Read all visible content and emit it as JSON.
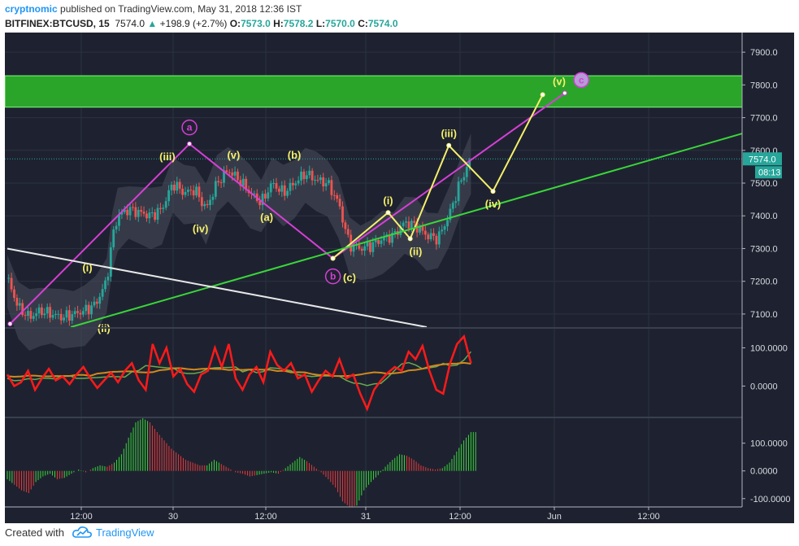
{
  "header": {
    "author": "cryptnomic",
    "published": "published on TradingView.com, May 31, 2018 12:36 IST",
    "symbol": "BITFINEX:BTCUSD, 15",
    "last": "7574.0",
    "change": "+198.9 (+2.7%)",
    "o_label": "O:",
    "o_val": "7573.0",
    "h_label": "H:",
    "h_val": "7578.2",
    "l_label": "L:",
    "l_val": "7570.0",
    "c_label": "C:",
    "c_val": "7574.0"
  },
  "footer": {
    "created": "Created with",
    "brand": "TradingView"
  },
  "colors": {
    "bg": "#1e2230",
    "up": "#26a69a",
    "down": "#ef5350",
    "zone": "#2aa52a",
    "magenta": "#d63fd6",
    "yellow": "#f5f06a",
    "green_line": "#3ad63a",
    "white_line": "#e8e8e8",
    "osc": "#ff1a1a",
    "osc_signal": "#6aa84f",
    "osc_slow": "#d2891e"
  },
  "chart_data": {
    "type": "candlestick",
    "symbol": "BITFINEX:BTCUSD",
    "timeframe": "15",
    "price_axis": {
      "range": [
        7060,
        7960
      ],
      "ticks": [
        "7900.0",
        "7800.0",
        "7700.0",
        "7600.0",
        "7500.0",
        "7400.0",
        "7300.0",
        "7200.0",
        "7100.0"
      ],
      "last_price": "7574.0",
      "countdown": "08:13"
    },
    "time_axis": {
      "ticks": [
        "12:00",
        "30",
        "12:00",
        "31",
        "12:00",
        "Jun",
        "12:00"
      ]
    },
    "target_zone": {
      "low": 7732,
      "high": 7828
    },
    "price_path": [
      {
        "t": 0,
        "p": 7210
      },
      {
        "t": 2,
        "p": 7120
      },
      {
        "t": 4,
        "p": 7090
      },
      {
        "t": 6,
        "p": 7110
      },
      {
        "t": 8,
        "p": 7100
      },
      {
        "t": 10,
        "p": 7090
      },
      {
        "t": 12,
        "p": 7100
      },
      {
        "t": 14,
        "p": 7110
      },
      {
        "t": 16,
        "p": 7130
      },
      {
        "t": 18,
        "p": 7200
      },
      {
        "t": 19,
        "p": 7330
      },
      {
        "t": 20,
        "p": 7400
      },
      {
        "t": 22,
        "p": 7420
      },
      {
        "t": 24,
        "p": 7410
      },
      {
        "t": 26,
        "p": 7400
      },
      {
        "t": 28,
        "p": 7420
      },
      {
        "t": 30,
        "p": 7500
      },
      {
        "t": 32,
        "p": 7470
      },
      {
        "t": 34,
        "p": 7480
      },
      {
        "t": 36,
        "p": 7420
      },
      {
        "t": 38,
        "p": 7500
      },
      {
        "t": 40,
        "p": 7540
      },
      {
        "t": 42,
        "p": 7510
      },
      {
        "t": 44,
        "p": 7470
      },
      {
        "t": 46,
        "p": 7440
      },
      {
        "t": 48,
        "p": 7500
      },
      {
        "t": 50,
        "p": 7470
      },
      {
        "t": 52,
        "p": 7500
      },
      {
        "t": 54,
        "p": 7530
      },
      {
        "t": 56,
        "p": 7510
      },
      {
        "t": 58,
        "p": 7500
      },
      {
        "t": 60,
        "p": 7440
      },
      {
        "t": 62,
        "p": 7310
      },
      {
        "t": 64,
        "p": 7300
      },
      {
        "t": 66,
        "p": 7310
      },
      {
        "t": 68,
        "p": 7330
      },
      {
        "t": 70,
        "p": 7340
      },
      {
        "t": 72,
        "p": 7380
      },
      {
        "t": 74,
        "p": 7370
      },
      {
        "t": 76,
        "p": 7340
      },
      {
        "t": 78,
        "p": 7330
      },
      {
        "t": 80,
        "p": 7400
      },
      {
        "t": 82,
        "p": 7500
      },
      {
        "t": 84,
        "p": 7574
      }
    ],
    "wave_lines": [
      {
        "name": "magenta-abc",
        "color": "magenta",
        "points": [
          [
            0.5,
            7070
          ],
          [
            33,
            7620
          ],
          [
            59,
            7270
          ],
          [
            101,
            7775
          ]
        ]
      },
      {
        "name": "yellow-impulse",
        "color": "yellow",
        "points": [
          [
            59,
            7270
          ],
          [
            69,
            7410
          ],
          [
            73,
            7330
          ],
          [
            80,
            7615
          ],
          [
            88,
            7475
          ],
          [
            97,
            7770
          ]
        ]
      },
      {
        "name": "green-trendline",
        "color": "green_line",
        "points": [
          [
            11.5,
            7060
          ],
          [
            137,
            7670
          ]
        ]
      },
      {
        "name": "white-trendline",
        "color": "white_line",
        "points": [
          [
            0,
            7300
          ],
          [
            76,
            7060
          ]
        ]
      }
    ],
    "wave_labels": [
      {
        "text": "a",
        "t": 33,
        "p": 7670,
        "color": "magenta",
        "circle": true
      },
      {
        "text": "b",
        "t": 59,
        "p": 7215,
        "color": "magenta",
        "circle": true
      },
      {
        "text": "c",
        "t": 104,
        "p": 7815,
        "color": "magenta",
        "circle": true
      },
      {
        "text": "(i)",
        "t": 14.5,
        "p": 7240,
        "color": "yellow"
      },
      {
        "text": "(iii)",
        "t": 29,
        "p": 7580,
        "color": "yellow"
      },
      {
        "text": "(iv)",
        "t": 35,
        "p": 7360,
        "color": "yellow"
      },
      {
        "text": "(v)",
        "t": 41,
        "p": 7585,
        "color": "yellow"
      },
      {
        "text": "(a)",
        "t": 47,
        "p": 7395,
        "color": "yellow"
      },
      {
        "text": "(b)",
        "t": 52,
        "p": 7585,
        "color": "yellow"
      },
      {
        "text": "(c)",
        "t": 62,
        "p": 7210,
        "color": "yellow"
      },
      {
        "text": "(i)",
        "t": 69,
        "p": 7445,
        "color": "yellow"
      },
      {
        "text": "(ii)",
        "t": 74,
        "p": 7290,
        "color": "yellow"
      },
      {
        "text": "(iii)",
        "t": 80,
        "p": 7650,
        "color": "yellow"
      },
      {
        "text": "(iv)",
        "t": 88,
        "p": 7435,
        "color": "yellow"
      },
      {
        "text": "(v)",
        "t": 100,
        "p": 7810,
        "color": "yellow"
      },
      {
        "text": "(ii)",
        "t": 17.5,
        "p": 7055,
        "color": "yellow"
      }
    ],
    "oscillator": {
      "axis_ticks": [
        "100.0000",
        "0.0000"
      ],
      "range": [
        -80,
        150
      ],
      "values": [
        30,
        0,
        10,
        40,
        -10,
        20,
        45,
        15,
        25,
        5,
        30,
        50,
        20,
        -5,
        15,
        35,
        10,
        40,
        60,
        15,
        -10,
        110,
        60,
        100,
        25,
        45,
        5,
        -15,
        30,
        40,
        100,
        50,
        110,
        20,
        -10,
        30,
        50,
        10,
        90,
        55,
        40,
        60,
        20,
        30,
        -15,
        15,
        40,
        25,
        70,
        20,
        30,
        -20,
        -60,
        -10,
        15,
        35,
        50,
        40,
        90,
        70,
        105,
        40,
        -10,
        -20,
        60,
        110,
        130,
        60
      ]
    },
    "histogram": {
      "axis_ticks": [
        "100.0000",
        "0.0000",
        "-100.0000"
      ],
      "range": [
        -130,
        190
      ],
      "values": [
        -30,
        -50,
        -70,
        -80,
        -40,
        -20,
        -10,
        -30,
        -25,
        -10,
        5,
        -5,
        10,
        20,
        15,
        30,
        60,
        120,
        175,
        190,
        175,
        140,
        110,
        80,
        60,
        40,
        30,
        20,
        20,
        40,
        25,
        10,
        -5,
        -10,
        -20,
        -15,
        -10,
        -5,
        -10,
        10,
        30,
        50,
        35,
        15,
        -5,
        -30,
        -60,
        -110,
        -130,
        -125,
        -70,
        -40,
        -15,
        15,
        40,
        60,
        55,
        40,
        20,
        10,
        5,
        10,
        30,
        70,
        110,
        140
      ]
    }
  }
}
